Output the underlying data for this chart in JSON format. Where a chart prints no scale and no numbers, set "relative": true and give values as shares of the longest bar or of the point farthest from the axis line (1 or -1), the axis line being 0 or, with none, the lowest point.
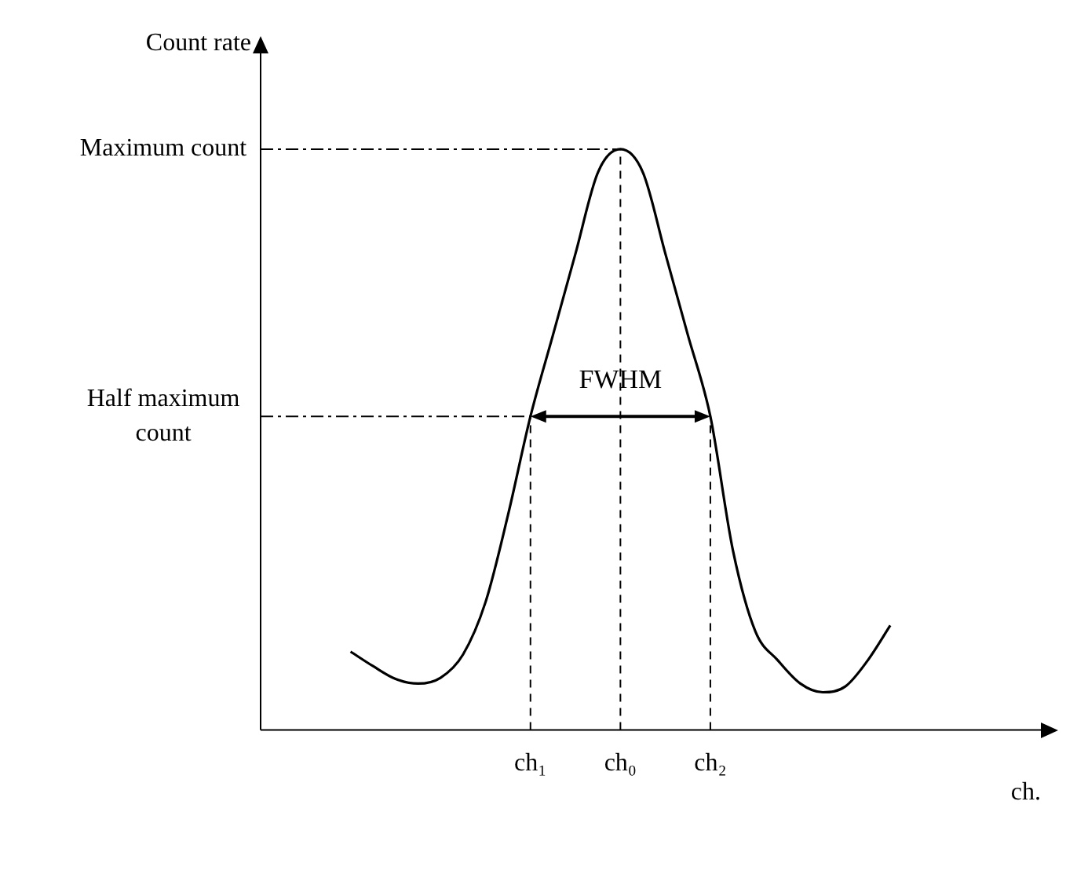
{
  "chart_data": {
    "type": "line",
    "relative": true,
    "xlabel": "ch.",
    "categories": [
      null,
      null,
      null,
      null,
      null,
      null,
      null,
      null,
      "ch₁",
      null,
      null,
      null,
      "ch₀",
      null,
      null,
      null,
      "ch₂",
      null,
      null,
      null,
      null,
      null,
      null,
      null,
      null
    ],
    "series": [
      {
        "color": "#000000",
        "values": [
          0.135,
          0.11,
          0.088,
          0.08,
          0.09,
          0.13,
          0.22,
          0.37,
          0.54,
          0.68,
          0.82,
          0.96,
          1,
          0.96,
          0.82,
          0.68,
          0.54,
          0.31,
          0.17,
          0.12,
          0.08,
          0.065,
          0.075,
          0.12,
          0.18
        ]
      }
    ],
    "ref_lines": [
      {
        "axis": "y",
        "value": 1,
        "label": "Maximum count",
        "line_style": "dashdot"
      },
      {
        "axis": "y",
        "value": 0.54,
        "label": "Half maximum count",
        "line_style": "dashdot"
      },
      {
        "axis": "x",
        "value": "ch₁",
        "line_style": "dashed"
      },
      {
        "axis": "x",
        "value": "ch₀",
        "line_style": "dashed"
      },
      {
        "axis": "x",
        "value": "ch₂",
        "line_style": "dashed"
      }
    ],
    "annotations": [
      "Count rate",
      {
        "text": "FWHM",
        "x": "ch₀",
        "y": 0.54
      }
    ],
    "grid": false,
    "legend": false,
    "marker": "none",
    "line_style": "solid"
  }
}
